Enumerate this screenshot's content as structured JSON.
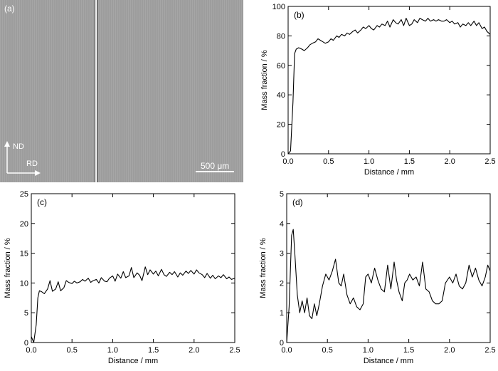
{
  "micrograph": {
    "panel_label": "(a)",
    "direction_up": "ND",
    "direction_right": "RD",
    "scale_bar": "500 μm"
  },
  "chart_data": [
    {
      "type": "line",
      "panel_label": "(b)",
      "xlabel": "Distance / mm",
      "ylabel": "Mass fraction / %",
      "xlim": [
        0,
        2.5
      ],
      "ylim": [
        0,
        100
      ],
      "xticks": [
        0.0,
        0.5,
        1.0,
        1.5,
        2.0,
        2.5
      ],
      "yticks": [
        0,
        20,
        40,
        60,
        80,
        100
      ],
      "xtick_labels": [
        "0.0",
        "0.5",
        "1.0",
        "1.5",
        "2.0",
        "2.5"
      ],
      "ytick_labels": [
        "0",
        "20",
        "40",
        "60",
        "80",
        "100"
      ],
      "grid": false,
      "series": [
        {
          "x": [
            0,
            0.03,
            0.06,
            0.08,
            0.1,
            0.13,
            0.17,
            0.2,
            0.24,
            0.27,
            0.3,
            0.34,
            0.37,
            0.4,
            0.43,
            0.46,
            0.5,
            0.53,
            0.56,
            0.6,
            0.63,
            0.66,
            0.7,
            0.73,
            0.76,
            0.8,
            0.83,
            0.86,
            0.9,
            0.93,
            0.96,
            1.0,
            1.03,
            1.06,
            1.1,
            1.13,
            1.16,
            1.2,
            1.23,
            1.26,
            1.3,
            1.33,
            1.36,
            1.4,
            1.43,
            1.46,
            1.5,
            1.53,
            1.56,
            1.6,
            1.63,
            1.66,
            1.7,
            1.73,
            1.76,
            1.8,
            1.83,
            1.86,
            1.9,
            1.93,
            1.96,
            2.0,
            2.03,
            2.06,
            2.1,
            2.13,
            2.16,
            2.2,
            2.23,
            2.26,
            2.3,
            2.33,
            2.36,
            2.4,
            2.43,
            2.46,
            2.5
          ],
          "y": [
            0,
            2,
            35,
            68,
            71,
            72,
            71,
            70,
            72,
            74,
            75,
            76,
            78,
            77,
            76,
            75,
            76,
            78,
            77,
            80,
            79,
            81,
            80,
            82,
            81,
            83,
            84,
            82,
            84,
            86,
            85,
            87,
            85,
            84,
            87,
            86,
            88,
            87,
            90,
            86,
            91,
            89,
            88,
            91,
            87,
            92,
            87,
            88,
            91,
            89,
            92,
            91,
            90,
            92,
            90,
            91,
            90,
            91,
            90,
            90,
            91,
            89,
            90,
            88,
            89,
            86,
            88,
            87,
            89,
            87,
            90,
            87,
            89,
            85,
            86,
            83,
            81
          ]
        }
      ]
    },
    {
      "type": "line",
      "panel_label": "(c)",
      "xlabel": "Distance / mm",
      "ylabel": "Mass fraction / %",
      "xlim": [
        0,
        2.5
      ],
      "ylim": [
        0,
        25
      ],
      "xticks": [
        0.0,
        0.5,
        1.0,
        1.5,
        2.0,
        2.5
      ],
      "yticks": [
        0,
        5,
        10,
        15,
        20,
        25
      ],
      "xtick_labels": [
        "0.0",
        "0.5",
        "1.0",
        "1.5",
        "2.0",
        "2.5"
      ],
      "ytick_labels": [
        "0",
        "5",
        "10",
        "15",
        "20",
        "25"
      ],
      "grid": false,
      "series": [
        {
          "x": [
            0,
            0.03,
            0.06,
            0.08,
            0.1,
            0.13,
            0.16,
            0.2,
            0.23,
            0.26,
            0.3,
            0.33,
            0.36,
            0.4,
            0.43,
            0.46,
            0.5,
            0.53,
            0.56,
            0.6,
            0.63,
            0.66,
            0.7,
            0.73,
            0.76,
            0.8,
            0.83,
            0.86,
            0.9,
            0.93,
            0.96,
            1.0,
            1.03,
            1.06,
            1.1,
            1.13,
            1.16,
            1.2,
            1.23,
            1.26,
            1.3,
            1.33,
            1.36,
            1.4,
            1.43,
            1.46,
            1.5,
            1.53,
            1.56,
            1.6,
            1.63,
            1.66,
            1.7,
            1.73,
            1.76,
            1.8,
            1.83,
            1.86,
            1.9,
            1.93,
            1.96,
            2.0,
            2.03,
            2.06,
            2.1,
            2.13,
            2.16,
            2.2,
            2.23,
            2.26,
            2.3,
            2.33,
            2.36,
            2.4,
            2.43,
            2.46,
            2.5
          ],
          "y": [
            1,
            0,
            3,
            7.5,
            8.7,
            8.5,
            8.2,
            9.0,
            10.4,
            8.6,
            9.0,
            10.2,
            8.7,
            9.2,
            10.4,
            10.1,
            9.9,
            10.3,
            10.0,
            10.2,
            10.6,
            10.3,
            10.8,
            10.1,
            10.4,
            10.6,
            10.0,
            10.9,
            10.3,
            10.2,
            10.8,
            11.2,
            10.3,
            11.5,
            10.8,
            11.9,
            10.9,
            11.2,
            12.6,
            10.9,
            11.7,
            11.3,
            10.4,
            12.7,
            11.4,
            12.2,
            11.5,
            12.0,
            11.2,
            12.3,
            11.4,
            11.1,
            11.8,
            11.4,
            11.9,
            11.0,
            11.7,
            11.3,
            12.0,
            11.6,
            12.1,
            11.5,
            12.2,
            11.7,
            11.4,
            10.9,
            11.6,
            10.8,
            11.3,
            10.7,
            11.2,
            10.9,
            11.4,
            10.7,
            11.0,
            10.6,
            10.8
          ]
        }
      ]
    },
    {
      "type": "line",
      "panel_label": "(d)",
      "xlabel": "Distance / mm",
      "ylabel": "Mass fraction / %",
      "xlim": [
        0,
        2.5
      ],
      "ylim": [
        0,
        5
      ],
      "xticks": [
        0.0,
        0.5,
        1.0,
        1.5,
        2.0,
        2.5
      ],
      "yticks": [
        0,
        1,
        2,
        3,
        4,
        5
      ],
      "xtick_labels": [
        "0.0",
        "0.5",
        "1.0",
        "1.5",
        "2.0",
        "2.5"
      ],
      "ytick_labels": [
        "0",
        "1",
        "2",
        "3",
        "4",
        "5"
      ],
      "grid": false,
      "series": [
        {
          "x": [
            0,
            0.03,
            0.06,
            0.08,
            0.1,
            0.13,
            0.16,
            0.19,
            0.22,
            0.25,
            0.28,
            0.31,
            0.34,
            0.37,
            0.4,
            0.44,
            0.48,
            0.52,
            0.56,
            0.6,
            0.64,
            0.67,
            0.7,
            0.74,
            0.78,
            0.82,
            0.86,
            0.9,
            0.94,
            0.97,
            1.0,
            1.04,
            1.08,
            1.12,
            1.16,
            1.2,
            1.24,
            1.28,
            1.32,
            1.35,
            1.38,
            1.42,
            1.45,
            1.48,
            1.51,
            1.55,
            1.59,
            1.63,
            1.67,
            1.71,
            1.75,
            1.79,
            1.83,
            1.87,
            1.91,
            1.95,
            2.0,
            2.04,
            2.08,
            2.12,
            2.16,
            2.2,
            2.24,
            2.28,
            2.32,
            2.36,
            2.4,
            2.44,
            2.47,
            2.5
          ],
          "y": [
            0,
            1.2,
            3.6,
            3.8,
            3.0,
            1.6,
            1.0,
            1.4,
            1.0,
            1.5,
            0.9,
            0.8,
            1.3,
            0.9,
            1.3,
            1.9,
            2.3,
            2.1,
            2.4,
            2.8,
            2.0,
            1.9,
            2.3,
            1.6,
            1.3,
            1.5,
            1.2,
            1.1,
            1.3,
            2.2,
            2.3,
            2.0,
            2.5,
            2.1,
            1.8,
            1.7,
            2.6,
            1.8,
            2.7,
            2.1,
            1.7,
            1.4,
            2.0,
            2.1,
            2.3,
            2.1,
            2.2,
            1.9,
            2.7,
            1.8,
            1.7,
            1.4,
            1.3,
            1.3,
            1.4,
            2.0,
            2.2,
            2.0,
            2.3,
            1.9,
            1.8,
            2.0,
            2.6,
            2.2,
            2.5,
            2.1,
            1.9,
            2.2,
            2.6,
            2.4
          ]
        }
      ]
    }
  ]
}
